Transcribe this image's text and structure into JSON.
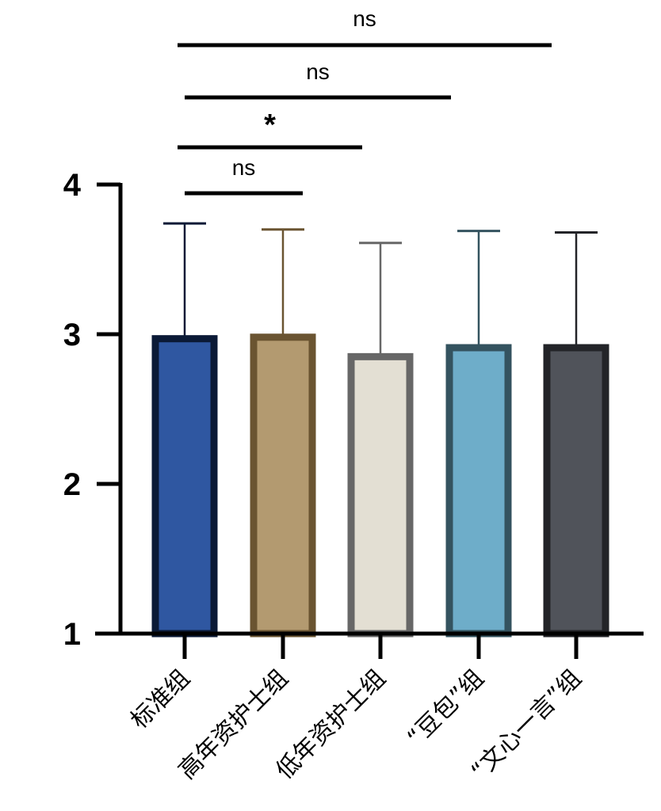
{
  "chart_data": {
    "type": "bar",
    "categories": [
      "标准组",
      "高年资护士组",
      "低年资护士组",
      "“豆包”组",
      "“文心一言”组"
    ],
    "values": [
      2.97,
      2.98,
      2.85,
      2.91,
      2.91
    ],
    "error_upper": [
      3.74,
      3.7,
      3.61,
      3.69,
      3.68
    ],
    "ylim": [
      1,
      4
    ],
    "yticks": [
      "1",
      "2",
      "3",
      "4"
    ],
    "xlabel": "",
    "ylabel": "",
    "title": "",
    "colors": {
      "fills": [
        "#2f57a1",
        "#b39a70",
        "#e3dfd3",
        "#6eadc9",
        "#50535a"
      ],
      "borders": [
        "#0b1a36",
        "#6a5431",
        "#676767",
        "#34535f",
        "#232428"
      ]
    },
    "significance": [
      {
        "from": 0,
        "to": 1,
        "label": "ns"
      },
      {
        "from": 0,
        "to": 2,
        "label": "*"
      },
      {
        "from": 0,
        "to": 3,
        "label": "ns"
      },
      {
        "from": 0,
        "to": 4,
        "label": "ns"
      }
    ]
  }
}
